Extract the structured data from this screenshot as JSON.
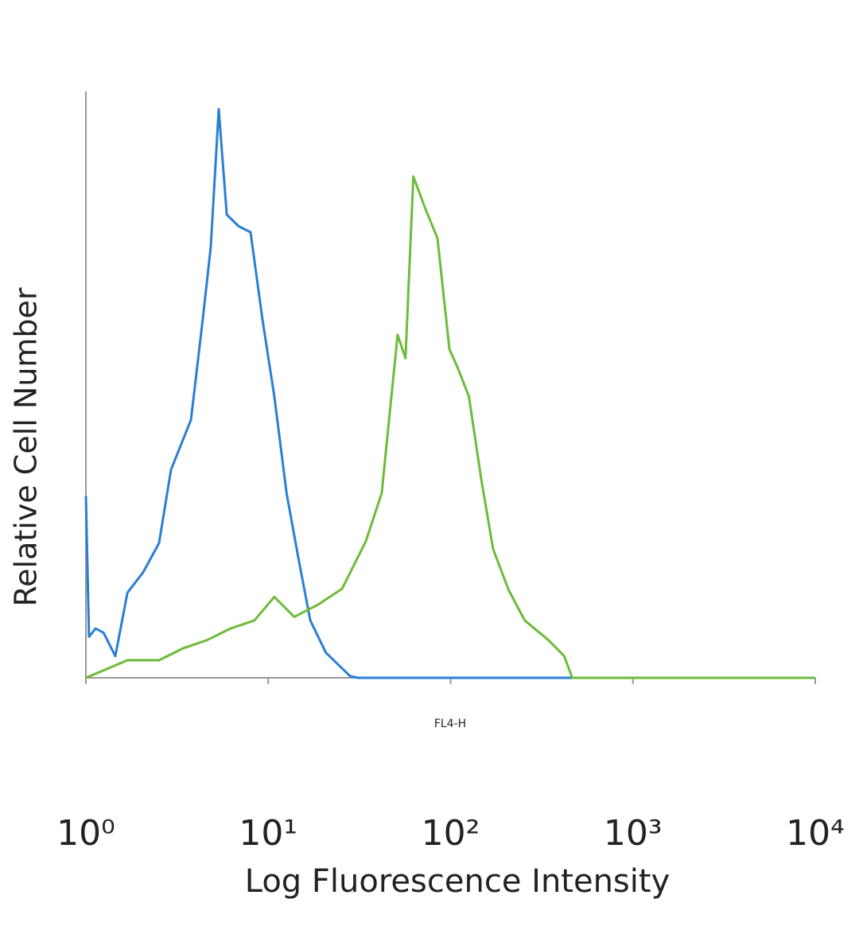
{
  "chart_data": {
    "type": "line",
    "x_label": "Log Fluorescence Intensity",
    "y_label": "Relative Cell Number",
    "annotation": "FL4-H",
    "xscale": "log",
    "xlim": [
      1,
      10000
    ],
    "xticks": [
      {
        "value": 1,
        "label": "10⁰"
      },
      {
        "value": 10,
        "label": "10¹"
      },
      {
        "value": 100,
        "label": "10²"
      },
      {
        "value": 1000,
        "label": "10³"
      },
      {
        "value": 10000,
        "label": "10⁴"
      }
    ],
    "ylim": [
      0,
      100
    ],
    "series": [
      {
        "color": "#2a7fd4",
        "x": [
          1,
          1.04,
          1.13,
          1.25,
          1.45,
          1.69,
          2.06,
          2.52,
          2.93,
          3.77,
          4.37,
          4.84,
          5.35,
          5.92,
          6.89,
          8.0,
          9.31,
          10.8,
          12.6,
          14.6,
          17.0,
          20.7,
          28.1,
          31.0,
          10000
        ],
        "values": [
          31,
          7,
          8.4,
          7.7,
          3.7,
          14.5,
          18,
          23,
          35.5,
          44,
          61,
          73.5,
          97,
          79,
          77,
          76,
          61,
          48,
          31.5,
          20.6,
          9.8,
          4.3,
          0.3,
          0,
          0
        ]
      },
      {
        "color": "#6dbb3a",
        "x": [
          1,
          1.69,
          2.52,
          3.4,
          4.6,
          6.2,
          8.4,
          10.8,
          13.9,
          18.8,
          25.4,
          34.3,
          41.9,
          51.2,
          56.6,
          62.5,
          72.7,
          84.7,
          98.6,
          109,
          126,
          147,
          171,
          208,
          255,
          345,
          420,
          465,
          10000
        ],
        "values": [
          0,
          3,
          3,
          5,
          6.4,
          8.4,
          9.8,
          13.8,
          10.4,
          12.5,
          15.2,
          23.3,
          31.5,
          58.5,
          54.5,
          85.5,
          80,
          75,
          56,
          53,
          48,
          34,
          22,
          15,
          9.8,
          6.4,
          3.7,
          0,
          0
        ]
      }
    ]
  }
}
